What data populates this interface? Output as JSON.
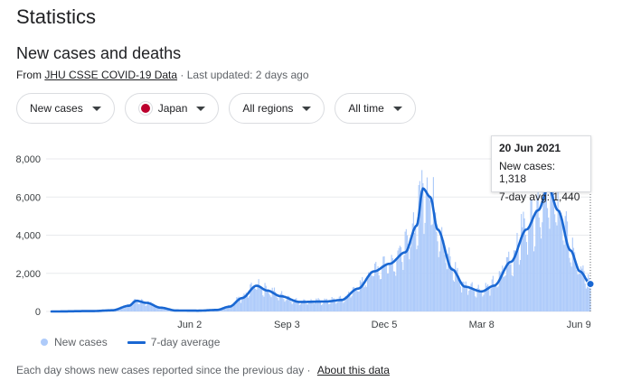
{
  "page": {
    "title": "Statistics",
    "subtitle": "New cases and deaths",
    "source_prefix": "From",
    "source_link": "JHU CSSE COVID-19 Data",
    "source_suffix": "· Last updated: 2 days ago"
  },
  "filters": [
    {
      "label": "New cases",
      "icon": "chevron-down-icon"
    },
    {
      "label": "Japan",
      "icon": "japan-flag-icon"
    },
    {
      "label": "All regions",
      "icon": "chevron-down-icon"
    },
    {
      "label": "All time",
      "icon": "chevron-down-icon"
    }
  ],
  "tooltip": {
    "date": "20 Jun 2021",
    "new_cases": "New cases: 1,318",
    "avg": "7-day avg: 1,440"
  },
  "legend": {
    "bars": "New cases",
    "line": "7-day average"
  },
  "footer": {
    "note": "Each day shows new cases reported since the previous day",
    "separator": "·",
    "about": "About this data"
  },
  "colors": {
    "bars": "#aecbfa",
    "line": "#1967d2",
    "grid": "#e8eaed",
    "axis_text": "#3c4043"
  },
  "chart_data": {
    "type": "bar",
    "title": "",
    "xlabel": "",
    "ylabel": "",
    "ylim": [
      0,
      8000
    ],
    "yticks": [
      "8,000",
      "6,000",
      "4,000",
      "2,000",
      "0"
    ],
    "xticks": [
      "Jun 2",
      "Sep 3",
      "Dec 5",
      "Mar 8",
      "Jun 9"
    ],
    "date_start": "2020-01-22",
    "date_end": "2021-06-20",
    "series": [
      {
        "name": "New cases",
        "kind": "bars"
      },
      {
        "name": "7-day average",
        "kind": "line",
        "points": [
          [
            "2020-01-22",
            0
          ],
          [
            "2020-03-01",
            20
          ],
          [
            "2020-03-20",
            60
          ],
          [
            "2020-04-05",
            300
          ],
          [
            "2020-04-12",
            560
          ],
          [
            "2020-04-22",
            450
          ],
          [
            "2020-05-05",
            200
          ],
          [
            "2020-05-20",
            50
          ],
          [
            "2020-06-10",
            40
          ],
          [
            "2020-06-28",
            80
          ],
          [
            "2020-07-10",
            250
          ],
          [
            "2020-07-22",
            700
          ],
          [
            "2020-08-05",
            1350
          ],
          [
            "2020-08-15",
            1100
          ],
          [
            "2020-08-28",
            800
          ],
          [
            "2020-09-15",
            500
          ],
          [
            "2020-10-10",
            520
          ],
          [
            "2020-10-25",
            600
          ],
          [
            "2020-11-10",
            1200
          ],
          [
            "2020-11-25",
            2100
          ],
          [
            "2020-12-10",
            2500
          ],
          [
            "2020-12-25",
            3100
          ],
          [
            "2021-01-05",
            4500
          ],
          [
            "2021-01-11",
            6450
          ],
          [
            "2021-01-18",
            6000
          ],
          [
            "2021-01-25",
            4300
          ],
          [
            "2021-02-08",
            2200
          ],
          [
            "2021-02-20",
            1300
          ],
          [
            "2021-03-08",
            1050
          ],
          [
            "2021-03-20",
            1350
          ],
          [
            "2021-04-05",
            2600
          ],
          [
            "2021-04-20",
            4300
          ],
          [
            "2021-05-01",
            5300
          ],
          [
            "2021-05-11",
            6500
          ],
          [
            "2021-05-20",
            5300
          ],
          [
            "2021-06-01",
            3200
          ],
          [
            "2021-06-10",
            2100
          ],
          [
            "2021-06-20",
            1440
          ]
        ]
      }
    ],
    "highlight": {
      "date": "2021-06-20",
      "new_cases": 1318,
      "avg": 1440
    }
  }
}
